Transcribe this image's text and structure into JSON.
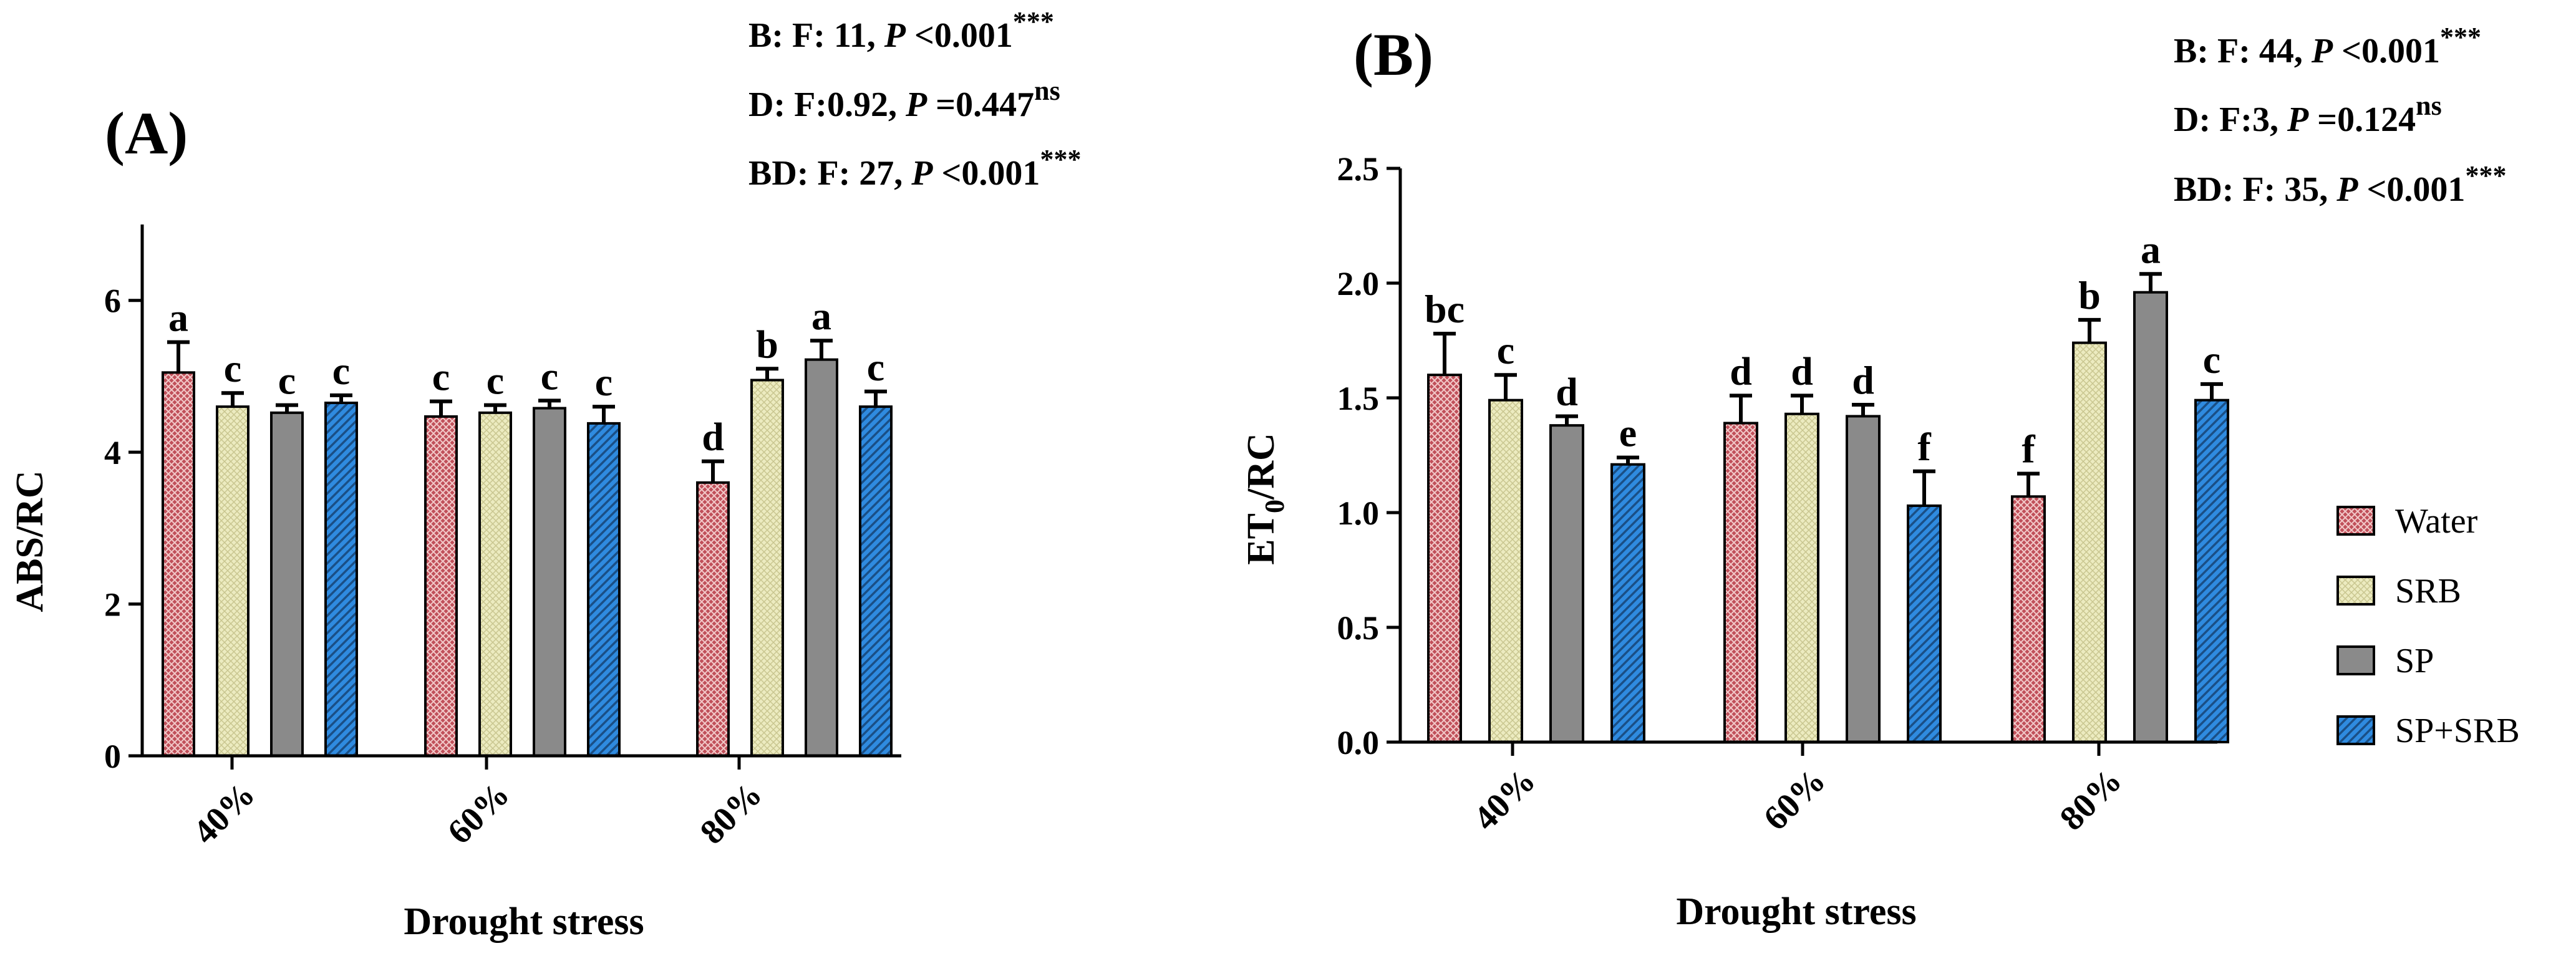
{
  "colors": {
    "Water": "#c0505a",
    "SRB": "#e9e6b4",
    "SP": "#8a8a8a",
    "SP+SRB": "#2f8be0"
  },
  "legend": [
    "Water",
    "SRB",
    "SP",
    "SP+SRB"
  ],
  "chart_data": [
    {
      "type": "bar",
      "panel_label": "(A)",
      "categories": [
        "40%",
        "60%",
        "80%"
      ],
      "xlabel": "Drought stress",
      "ylabel": "ABS/RC",
      "ylim": [
        0,
        7
      ],
      "yticks": [
        "0",
        "2",
        "4",
        "6"
      ],
      "series": [
        {
          "name": "Water",
          "values": [
            5.05,
            4.47,
            3.6
          ],
          "errors": [
            0.4,
            0.2,
            0.28
          ],
          "letters": [
            "a",
            "c",
            "d"
          ]
        },
        {
          "name": "SRB",
          "values": [
            4.6,
            4.52,
            4.95
          ],
          "errors": [
            0.18,
            0.1,
            0.15
          ],
          "letters": [
            "c",
            "c",
            "b"
          ]
        },
        {
          "name": "SP",
          "values": [
            4.52,
            4.58,
            5.22
          ],
          "errors": [
            0.1,
            0.1,
            0.25
          ],
          "letters": [
            "c",
            "c",
            "a"
          ]
        },
        {
          "name": "SP+SRB",
          "values": [
            4.65,
            4.38,
            4.6
          ],
          "errors": [
            0.1,
            0.22,
            0.2
          ],
          "letters": [
            "c",
            "c",
            "c"
          ]
        }
      ],
      "stats": [
        {
          "prefix": "B: F: 11, ",
          "p_label": "P",
          "p_value": " <0.001",
          "sig": "***"
        },
        {
          "prefix": "D: F:0.92, ",
          "p_label": "P",
          "p_value": " =0.447",
          "sig": "ns"
        },
        {
          "prefix": "BD: F: 27, ",
          "p_label": "P",
          "p_value": " <0.001",
          "sig": "***"
        }
      ]
    },
    {
      "type": "bar",
      "panel_label": "(B)",
      "categories": [
        "40%",
        "60%",
        "80%"
      ],
      "xlabel": "Drought stress",
      "ylabel_main": "ET",
      "ylabel_sub": "0",
      "ylabel_rest": "/RC",
      "ylim": [
        0,
        2.5
      ],
      "yticks": [
        "0.0",
        "0.5",
        "1.0",
        "1.5",
        "2.0",
        "2.5"
      ],
      "series": [
        {
          "name": "Water",
          "values": [
            1.6,
            1.39,
            1.07
          ],
          "errors": [
            0.18,
            0.12,
            0.1
          ],
          "letters": [
            "bc",
            "d",
            "f"
          ]
        },
        {
          "name": "SRB",
          "values": [
            1.49,
            1.43,
            1.74
          ],
          "errors": [
            0.11,
            0.08,
            0.1
          ],
          "letters": [
            "c",
            "d",
            "b"
          ]
        },
        {
          "name": "SP",
          "values": [
            1.38,
            1.42,
            1.96
          ],
          "errors": [
            0.04,
            0.05,
            0.08
          ],
          "letters": [
            "d",
            "d",
            "a"
          ]
        },
        {
          "name": "SP+SRB",
          "values": [
            1.21,
            1.03,
            1.49
          ],
          "errors": [
            0.03,
            0.15,
            0.07
          ],
          "letters": [
            "e",
            "f",
            "c"
          ]
        }
      ],
      "stats": [
        {
          "prefix": "B: F: 44, ",
          "p_label": "P",
          "p_value": " <0.001",
          "sig": "***"
        },
        {
          "prefix": "D: F:3, ",
          "p_label": "P",
          "p_value": " =0.124",
          "sig": "ns"
        },
        {
          "prefix": "BD: F: 35, ",
          "p_label": "P",
          "p_value": " <0.001",
          "sig": "***"
        }
      ]
    }
  ]
}
